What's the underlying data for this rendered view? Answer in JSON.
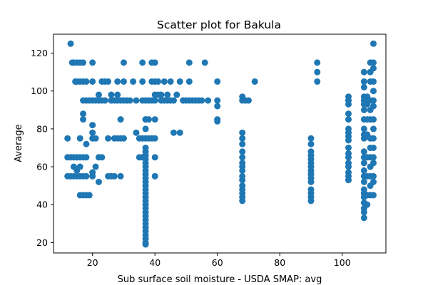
{
  "chart_data": {
    "type": "scatter",
    "title": "Scatter plot for Bakula",
    "xlabel": "Sub surface soil moisture - USDA SMAP: avg",
    "ylabel": "Average",
    "xlim": [
      7.5,
      114
    ],
    "ylim": [
      14.5,
      130
    ],
    "xticks": [
      20,
      40,
      60,
      80,
      100
    ],
    "yticks": [
      20,
      40,
      60,
      80,
      100,
      120
    ],
    "grid": false,
    "legend": "none",
    "marker_color": "#1f77b4",
    "points": [
      [
        13,
        125
      ],
      [
        13.5,
        115
      ],
      [
        14,
        115
      ],
      [
        15,
        115
      ],
      [
        16,
        115
      ],
      [
        17,
        115
      ],
      [
        14.5,
        105
      ],
      [
        15,
        105
      ],
      [
        16,
        105
      ],
      [
        17,
        105
      ],
      [
        18,
        105
      ],
      [
        12,
        75
      ],
      [
        12,
        65
      ],
      [
        13,
        65
      ],
      [
        14,
        65
      ],
      [
        12,
        55
      ],
      [
        13,
        55
      ],
      [
        14,
        55
      ],
      [
        15,
        55
      ],
      [
        14,
        60
      ],
      [
        15,
        58
      ],
      [
        16,
        55
      ],
      [
        16,
        60
      ],
      [
        17,
        55
      ],
      [
        18,
        55
      ],
      [
        17,
        65
      ],
      [
        18,
        65
      ],
      [
        16,
        65
      ],
      [
        15,
        65
      ],
      [
        16,
        45
      ],
      [
        17,
        45
      ],
      [
        18,
        45
      ],
      [
        19,
        45
      ],
      [
        16,
        75
      ],
      [
        18,
        72
      ],
      [
        17,
        85
      ],
      [
        17,
        88
      ],
      [
        18,
        95
      ],
      [
        17,
        95
      ],
      [
        19,
        95
      ],
      [
        20,
        95
      ],
      [
        20,
        115
      ],
      [
        20,
        105
      ],
      [
        20,
        75
      ],
      [
        20,
        78
      ],
      [
        20,
        82
      ],
      [
        21,
        75
      ],
      [
        22,
        65
      ],
      [
        23,
        65
      ],
      [
        21,
        60
      ],
      [
        20,
        57
      ],
      [
        22,
        52
      ],
      [
        20,
        55
      ],
      [
        21,
        95
      ],
      [
        22,
        95
      ],
      [
        23,
        95
      ],
      [
        24,
        95
      ],
      [
        22,
        98
      ],
      [
        23,
        105
      ],
      [
        24,
        105
      ],
      [
        25,
        105
      ],
      [
        25,
        55
      ],
      [
        26,
        55
      ],
      [
        27,
        55
      ],
      [
        29,
        55
      ],
      [
        25,
        75
      ],
      [
        27,
        75
      ],
      [
        28,
        75
      ],
      [
        29,
        75
      ],
      [
        30,
        75
      ],
      [
        26,
        95
      ],
      [
        26,
        98
      ],
      [
        27,
        95
      ],
      [
        28,
        95
      ],
      [
        28,
        98
      ],
      [
        29,
        95
      ],
      [
        30,
        95
      ],
      [
        31,
        95
      ],
      [
        32,
        95
      ],
      [
        28,
        105
      ],
      [
        30,
        105
      ],
      [
        30,
        115
      ],
      [
        29,
        85
      ],
      [
        33,
        105
      ],
      [
        34,
        95
      ],
      [
        34,
        78
      ],
      [
        35,
        75
      ],
      [
        36,
        75
      ],
      [
        35,
        65
      ],
      [
        36,
        65
      ],
      [
        36,
        105
      ],
      [
        36,
        115
      ],
      [
        36,
        95
      ],
      [
        37,
        95
      ],
      [
        37,
        85
      ],
      [
        37,
        80
      ],
      [
        37,
        75
      ],
      [
        37,
        70
      ],
      [
        37,
        68
      ],
      [
        37,
        66
      ],
      [
        37,
        64
      ],
      [
        37,
        62
      ],
      [
        37,
        60
      ],
      [
        37,
        58
      ],
      [
        37,
        56
      ],
      [
        37,
        54
      ],
      [
        37,
        52
      ],
      [
        37,
        50
      ],
      [
        37,
        48
      ],
      [
        37,
        46
      ],
      [
        37,
        44
      ],
      [
        37,
        42
      ],
      [
        37,
        40
      ],
      [
        37,
        38
      ],
      [
        37,
        36
      ],
      [
        37,
        34
      ],
      [
        37,
        32
      ],
      [
        37,
        30
      ],
      [
        37,
        28
      ],
      [
        37,
        26
      ],
      [
        37,
        24
      ],
      [
        37,
        22
      ],
      [
        37,
        20
      ],
      [
        37,
        19
      ],
      [
        37,
        85
      ],
      [
        38,
        85
      ],
      [
        38,
        95
      ],
      [
        39,
        95
      ],
      [
        39,
        105
      ],
      [
        39,
        115
      ],
      [
        40,
        115
      ],
      [
        40,
        105
      ],
      [
        40,
        98
      ],
      [
        40,
        95
      ],
      [
        40,
        85
      ],
      [
        40,
        75
      ],
      [
        40,
        65
      ],
      [
        40,
        55
      ],
      [
        39,
        75
      ],
      [
        38,
        75
      ],
      [
        41,
        105
      ],
      [
        41,
        98
      ],
      [
        42,
        95
      ],
      [
        42,
        98
      ],
      [
        43,
        95
      ],
      [
        43,
        105
      ],
      [
        44,
        95
      ],
      [
        44,
        98
      ],
      [
        45,
        95
      ],
      [
        45,
        105
      ],
      [
        46,
        95
      ],
      [
        46,
        78
      ],
      [
        47,
        98
      ],
      [
        48,
        78
      ],
      [
        48,
        105
      ],
      [
        49,
        95
      ],
      [
        50,
        95
      ],
      [
        51,
        95
      ],
      [
        51,
        105
      ],
      [
        52,
        95
      ],
      [
        51,
        115
      ],
      [
        53,
        95
      ],
      [
        54,
        95
      ],
      [
        55,
        95
      ],
      [
        56,
        115
      ],
      [
        57,
        95
      ],
      [
        60,
        105
      ],
      [
        60,
        95
      ],
      [
        60,
        92
      ],
      [
        60,
        85
      ],
      [
        60,
        84
      ],
      [
        68,
        97
      ],
      [
        68,
        95
      ],
      [
        69,
        95
      ],
      [
        70,
        95
      ],
      [
        72,
        105
      ],
      [
        68,
        78
      ],
      [
        68,
        75
      ],
      [
        68,
        72
      ],
      [
        68,
        68
      ],
      [
        68,
        65
      ],
      [
        68,
        62
      ],
      [
        68,
        60
      ],
      [
        68,
        58
      ],
      [
        68,
        55
      ],
      [
        68,
        53
      ],
      [
        68,
        50
      ],
      [
        68,
        48
      ],
      [
        68,
        46
      ],
      [
        68,
        44
      ],
      [
        68,
        42
      ],
      [
        90,
        75
      ],
      [
        90,
        72
      ],
      [
        90,
        68
      ],
      [
        90,
        66
      ],
      [
        90,
        64
      ],
      [
        90,
        62
      ],
      [
        90,
        60
      ],
      [
        90,
        58
      ],
      [
        90,
        56
      ],
      [
        90,
        54
      ],
      [
        90,
        52
      ],
      [
        90,
        48
      ],
      [
        90,
        46
      ],
      [
        90,
        44
      ],
      [
        90,
        42
      ],
      [
        92,
        115
      ],
      [
        92,
        110
      ],
      [
        92,
        105
      ],
      [
        102,
        97
      ],
      [
        102,
        95
      ],
      [
        102,
        93
      ],
      [
        102,
        88
      ],
      [
        102,
        85
      ],
      [
        102,
        80
      ],
      [
        102,
        78
      ],
      [
        102,
        76
      ],
      [
        102,
        74
      ],
      [
        102,
        70
      ],
      [
        102,
        67
      ],
      [
        102,
        65
      ],
      [
        102,
        62
      ],
      [
        102,
        60
      ],
      [
        102,
        57
      ],
      [
        102,
        55
      ],
      [
        102,
        53
      ],
      [
        107,
        110
      ],
      [
        107,
        105
      ],
      [
        107,
        102
      ],
      [
        107,
        97
      ],
      [
        107,
        95
      ],
      [
        107,
        93
      ],
      [
        107,
        90
      ],
      [
        107,
        85
      ],
      [
        107,
        80
      ],
      [
        107,
        77
      ],
      [
        107,
        75
      ],
      [
        107,
        68
      ],
      [
        107,
        65
      ],
      [
        107,
        62
      ],
      [
        107,
        58
      ],
      [
        107,
        55
      ],
      [
        107,
        52
      ],
      [
        107,
        48
      ],
      [
        107,
        46
      ],
      [
        107,
        44
      ],
      [
        107,
        41
      ],
      [
        107,
        38
      ],
      [
        107,
        36
      ],
      [
        107,
        33
      ],
      [
        108,
        97
      ],
      [
        108,
        93
      ],
      [
        108,
        85
      ],
      [
        108,
        77
      ],
      [
        108,
        65
      ],
      [
        108,
        55
      ],
      [
        108,
        45
      ],
      [
        108,
        40
      ],
      [
        109,
        115
      ],
      [
        109,
        110
      ],
      [
        109,
        105
      ],
      [
        109,
        95
      ],
      [
        109,
        90
      ],
      [
        109,
        85
      ],
      [
        109,
        75
      ],
      [
        109,
        70
      ],
      [
        109,
        65
      ],
      [
        109,
        60
      ],
      [
        109,
        55
      ],
      [
        109,
        50
      ],
      [
        109,
        45
      ],
      [
        110,
        125
      ],
      [
        110,
        115
      ],
      [
        110,
        112
      ],
      [
        110,
        105
      ],
      [
        110,
        100
      ],
      [
        110,
        95
      ],
      [
        110,
        92
      ],
      [
        110,
        85
      ],
      [
        110,
        80
      ],
      [
        110,
        75
      ],
      [
        110,
        70
      ],
      [
        110,
        65
      ],
      [
        110,
        62
      ],
      [
        110,
        55
      ],
      [
        110,
        52
      ],
      [
        110,
        45
      ]
    ]
  }
}
